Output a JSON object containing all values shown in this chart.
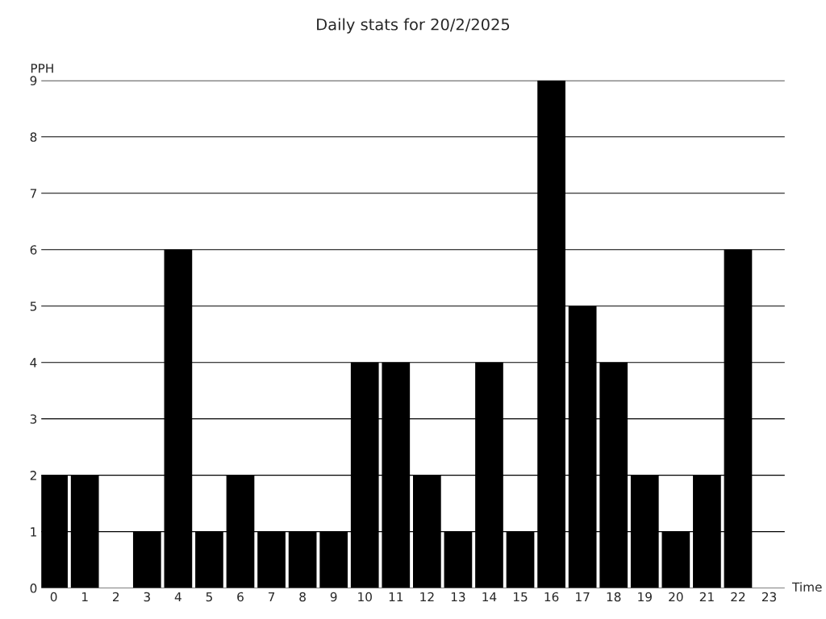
{
  "chart_data": {
    "type": "bar",
    "title": "Daily stats for 20/2/2025",
    "xlabel": "Time",
    "ylabel": "PPH",
    "categories": [
      "0",
      "1",
      "2",
      "3",
      "4",
      "5",
      "6",
      "7",
      "8",
      "9",
      "10",
      "11",
      "12",
      "13",
      "14",
      "15",
      "16",
      "17",
      "18",
      "19",
      "20",
      "21",
      "22",
      "23"
    ],
    "values": [
      2,
      2,
      0,
      1,
      6,
      1,
      2,
      1,
      1,
      1,
      4,
      4,
      2,
      1,
      4,
      1,
      9,
      5,
      4,
      2,
      1,
      2,
      6,
      0
    ],
    "color": "#000000",
    "ylim": [
      0,
      9
    ],
    "yticks": [
      0,
      1,
      2,
      3,
      4,
      5,
      6,
      7,
      8,
      9
    ],
    "grid": "y"
  }
}
